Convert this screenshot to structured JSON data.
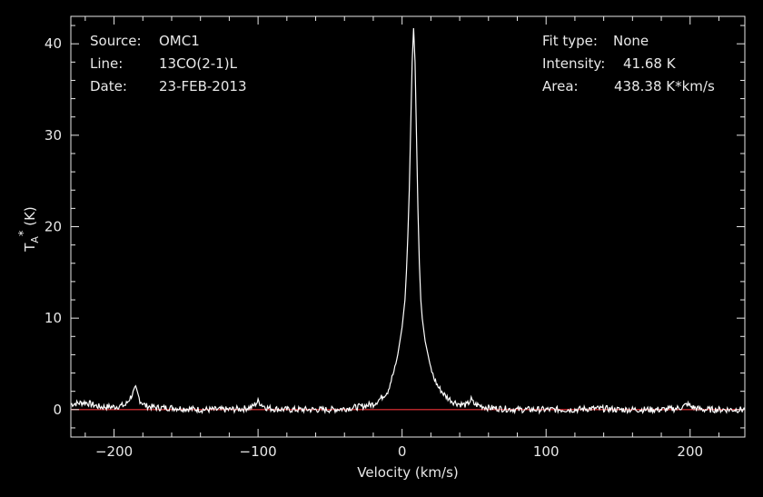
{
  "header": {
    "left": [
      {
        "label": "Source:",
        "value": "OMC1"
      },
      {
        "label": "Line:",
        "value": "13CO(2-1)L"
      },
      {
        "label": "Date:",
        "value": "23-FEB-2013"
      }
    ],
    "right": [
      {
        "label": "Fit type:",
        "value": "None"
      },
      {
        "label": "Intensity:",
        "value": "41.68 K"
      },
      {
        "label": "Area:",
        "value": "438.38 K*km/s"
      }
    ]
  },
  "chart_data": {
    "type": "line",
    "xlabel": "Velocity (km/s)",
    "ylabel": "T_A^* (K)",
    "xlim": [
      -230,
      238
    ],
    "ylim": [
      -3,
      43
    ],
    "x_ticks": [
      -200,
      -100,
      0,
      100,
      200
    ],
    "x_tick_labels": [
      "−200",
      "−100",
      "0",
      "100",
      "200"
    ],
    "y_ticks": [
      0,
      10,
      20,
      30,
      40
    ],
    "y_tick_labels": [
      "0",
      "10",
      "20",
      "30",
      "40"
    ],
    "baseline": 0,
    "grid": false,
    "series": [
      {
        "x": [
          -230,
          -220,
          -210,
          -200,
          -192,
          -188,
          -185,
          -182,
          -178,
          -170,
          -160,
          -150,
          -140,
          -130,
          -120,
          -110,
          -104,
          -100,
          -97,
          -94,
          -90,
          -80,
          -70,
          -60,
          -50,
          -40,
          -30,
          -20,
          -15,
          -10,
          -7,
          -5,
          -3,
          0,
          2,
          3,
          4,
          5,
          6,
          7,
          8,
          9,
          10,
          11,
          12,
          13,
          14,
          16,
          18,
          20,
          22,
          25,
          30,
          35,
          40,
          45,
          48,
          50,
          55,
          60,
          70,
          80,
          90,
          100,
          110,
          120,
          130,
          140,
          150,
          160,
          170,
          180,
          190,
          195,
          198,
          201,
          205,
          210,
          220,
          230,
          238
        ],
        "y": [
          0.6,
          0.8,
          0.3,
          0.3,
          0.5,
          1.5,
          2.3,
          1.0,
          0.4,
          0.2,
          0.2,
          0.1,
          0.0,
          0.0,
          0.0,
          0.1,
          0.3,
          0.9,
          0.5,
          0.2,
          0.1,
          0.0,
          0.0,
          0.0,
          0.0,
          0.1,
          0.3,
          0.6,
          1.2,
          2.0,
          3.5,
          4.5,
          6.0,
          9.0,
          12.0,
          15.0,
          19.0,
          24.0,
          31.0,
          38.0,
          41.7,
          38.0,
          30.0,
          22.0,
          16.0,
          12.0,
          10.0,
          7.5,
          6.0,
          4.5,
          3.5,
          2.5,
          1.5,
          0.9,
          0.6,
          0.5,
          1.1,
          0.6,
          0.4,
          0.2,
          0.1,
          0.0,
          0.0,
          0.0,
          0.0,
          0.0,
          0.1,
          0.1,
          0.0,
          0.0,
          0.0,
          0.0,
          0.1,
          0.3,
          0.6,
          0.3,
          0.1,
          0.0,
          0.0,
          0.0,
          0.0
        ]
      }
    ]
  }
}
